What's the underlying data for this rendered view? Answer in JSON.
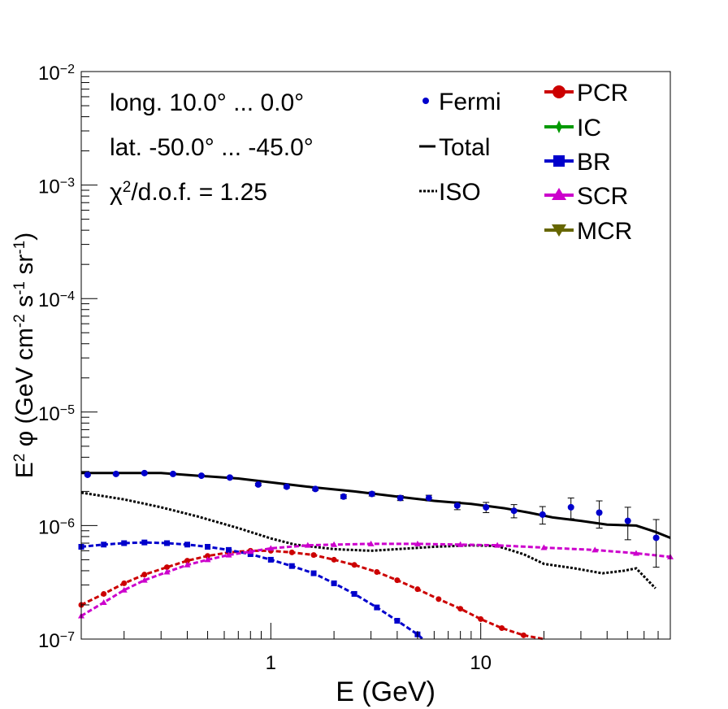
{
  "chart_data": {
    "type": "line",
    "xscale": "log",
    "yscale": "log",
    "xlim": [
      0.125,
      80
    ],
    "ylim": [
      1e-07,
      0.01
    ],
    "xlabel": "E (GeV)",
    "ylabel_parts": {
      "base": "E",
      "exp": "2",
      "rest": " φ (GeV cm",
      "cm_exp": "-2",
      "s": " s",
      "s_exp": "-1",
      "sr": " sr",
      "sr_exp": "-1",
      "close": ")"
    },
    "x_tick_labels": [
      {
        "x": 1,
        "label": "1"
      },
      {
        "x": 10,
        "label": "10"
      }
    ],
    "y_tick_labels": [
      {
        "y": 1e-07,
        "base": "10",
        "exp": "−7"
      },
      {
        "y": 1e-06,
        "base": "10",
        "exp": "−6"
      },
      {
        "y": 1e-05,
        "base": "10",
        "exp": "−5"
      },
      {
        "y": 0.0001,
        "base": "10",
        "exp": "−4"
      },
      {
        "y": 0.001,
        "base": "10",
        "exp": "−3"
      },
      {
        "y": 0.01,
        "base": "10",
        "exp": "−2"
      }
    ],
    "annotations": {
      "longitude": "long. 10.0° ... 0.0°",
      "latitude": "lat. -50.0° ... -45.0°",
      "chi_symbol": "χ",
      "chi_exp": "2",
      "chi_text": "/d.o.f. = 1.25"
    },
    "legend_left": [
      {
        "name": "Fermi",
        "style": "point",
        "color": "#0000cc"
      },
      {
        "name": "Total",
        "style": "solid",
        "color": "#000000"
      },
      {
        "name": "ISO",
        "style": "dotted",
        "color": "#000000"
      }
    ],
    "legend_right": [
      {
        "name": "PCR",
        "marker": "circle",
        "color": "#cc0000"
      },
      {
        "name": "IC",
        "marker": "star",
        "color": "#009900"
      },
      {
        "name": "BR",
        "marker": "square",
        "color": "#0000cc"
      },
      {
        "name": "SCR",
        "marker": "triangle-up",
        "color": "#cc00cc"
      },
      {
        "name": "MCR",
        "marker": "triangle-down",
        "color": "#666600"
      }
    ],
    "fermi": {
      "x": [
        0.134,
        0.183,
        0.25,
        0.342,
        0.467,
        0.638,
        0.871,
        1.19,
        1.63,
        2.22,
        3.03,
        4.14,
        5.66,
        7.73,
        10.6,
        14.4,
        19.7,
        26.9,
        36.7,
        50.2,
        68.5
      ],
      "y": [
        2.8e-06,
        2.85e-06,
        2.9e-06,
        2.85e-06,
        2.75e-06,
        2.65e-06,
        2.3e-06,
        2.2e-06,
        2.1e-06,
        1.8e-06,
        1.9e-06,
        1.75e-06,
        1.75e-06,
        1.5e-06,
        1.45e-06,
        1.35e-06,
        1.25e-06,
        1.45e-06,
        1.3e-06,
        1.1e-06,
        7.8e-07
      ],
      "err": [
        5e-08,
        5e-08,
        5e-08,
        5e-08,
        5e-08,
        5e-08,
        6e-08,
        6e-08,
        6e-08,
        7e-08,
        8e-08,
        9e-08,
        1e-07,
        1.2e-07,
        1.5e-07,
        1.8e-07,
        2.2e-07,
        3e-07,
        3.5e-07,
        3.5e-07,
        3.5e-07
      ]
    },
    "series": [
      {
        "name": "Total",
        "color": "#000000",
        "style": "solid",
        "x": [
          0.125,
          0.2,
          0.3,
          0.45,
          0.7,
          1.0,
          1.5,
          2.5,
          4.0,
          6.0,
          9.0,
          13.0,
          17.0,
          22.0,
          30.0,
          40.0,
          55.0,
          68.0,
          80.0
        ],
        "y": [
          2.9e-06,
          2.9e-06,
          2.9e-06,
          2.75e-06,
          2.6e-06,
          2.4e-06,
          2.2e-06,
          2e-06,
          1.8e-06,
          1.65e-06,
          1.55e-06,
          1.42e-06,
          1.3e-06,
          1.18e-06,
          1.1e-06,
          1.02e-06,
          1e-06,
          8.8e-07,
          7.8e-07
        ]
      },
      {
        "name": "ISO",
        "color": "#000000",
        "style": "dotted",
        "x": [
          0.125,
          0.2,
          0.3,
          0.45,
          0.7,
          1.0,
          1.3,
          2.0,
          3.0,
          4.0,
          6.0,
          9.0,
          12.0,
          16.0,
          20.0,
          28.0,
          38.0,
          48.0,
          55.0,
          68.0
        ],
        "y": [
          1.95e-06,
          1.7e-06,
          1.45e-06,
          1.2e-06,
          9.5e-07,
          7.7e-07,
          6.8e-07,
          6.2e-07,
          6e-07,
          6.2e-07,
          6.5e-07,
          6.7e-07,
          6.6e-07,
          5.6e-07,
          4.6e-07,
          4.2e-07,
          3.8e-07,
          4e-07,
          4.2e-07,
          2.8e-07
        ]
      },
      {
        "name": "PCR",
        "color": "#cc0000",
        "marker": "circle",
        "style": "dashed",
        "x": [
          0.125,
          0.16,
          0.2,
          0.25,
          0.32,
          0.4,
          0.5,
          0.63,
          0.8,
          1.0,
          1.26,
          1.6,
          2.0,
          2.5,
          3.2,
          4.0,
          5.0,
          6.3,
          8.0,
          10.0,
          12.6,
          16.0,
          20.0
        ],
        "y": [
          2e-07,
          2.5e-07,
          3.1e-07,
          3.7e-07,
          4.3e-07,
          4.9e-07,
          5.4e-07,
          5.8e-07,
          6e-07,
          6e-07,
          5.8e-07,
          5.5e-07,
          5e-07,
          4.5e-07,
          3.9e-07,
          3.3e-07,
          2.75e-07,
          2.25e-07,
          1.85e-07,
          1.5e-07,
          1.25e-07,
          1.08e-07,
          1e-07
        ]
      },
      {
        "name": "BR",
        "color": "#0000cc",
        "marker": "square",
        "style": "dashed",
        "x": [
          0.125,
          0.16,
          0.2,
          0.25,
          0.32,
          0.4,
          0.5,
          0.63,
          0.8,
          1.0,
          1.26,
          1.6,
          2.0,
          2.5,
          3.2,
          4.0,
          5.0,
          5.3
        ],
        "y": [
          6.5e-07,
          6.8e-07,
          7e-07,
          7.1e-07,
          7e-07,
          6.8e-07,
          6.5e-07,
          6.1e-07,
          5.6e-07,
          5e-07,
          4.4e-07,
          3.8e-07,
          3.1e-07,
          2.5e-07,
          1.9e-07,
          1.45e-07,
          1.1e-07,
          1e-07
        ]
      },
      {
        "name": "SCR",
        "color": "#cc00cc",
        "marker": "triangle-up",
        "style": "dashed",
        "x": [
          0.125,
          0.16,
          0.2,
          0.25,
          0.32,
          0.4,
          0.5,
          0.63,
          0.8,
          1.0,
          1.5,
          2.0,
          3.0,
          5.0,
          8.0,
          12.0,
          20.0,
          35.0,
          55.0,
          80.0
        ],
        "y": [
          1.6e-07,
          2.1e-07,
          2.7e-07,
          3.3e-07,
          3.9e-07,
          4.5e-07,
          5e-07,
          5.5e-07,
          5.9e-07,
          6.3e-07,
          6.7e-07,
          6.8e-07,
          6.9e-07,
          6.9e-07,
          6.8e-07,
          6.7e-07,
          6.4e-07,
          6.1e-07,
          5.7e-07,
          5.3e-07
        ]
      }
    ]
  }
}
